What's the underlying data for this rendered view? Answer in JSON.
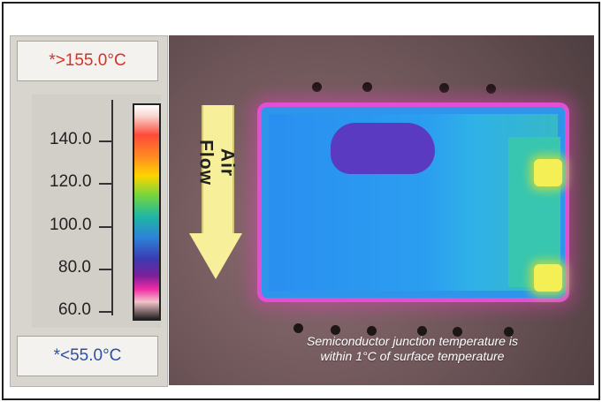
{
  "scale": {
    "max_label": "*>155.0°C",
    "min_label": "*<55.0°C",
    "ticks": [
      "140.0",
      "120.0",
      "100.0",
      "80.0",
      "60.0"
    ]
  },
  "thermal_image": {
    "air_flow_label": "Air Flow",
    "caption_line1": "Semiconductor junction temperature is",
    "caption_line2": "within 1°C of surface temperature"
  },
  "colors": {
    "max_text": "#d23427",
    "min_text": "#2e4fa8"
  }
}
